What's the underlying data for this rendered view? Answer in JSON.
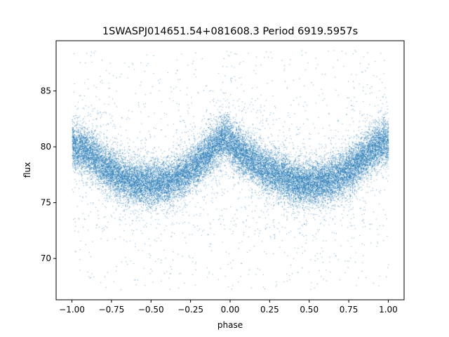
{
  "chart_data": {
    "type": "scatter",
    "title": "1SWASPJ014651.54+081608.3 Period 6919.5957s",
    "xlabel": "phase",
    "ylabel": "flux",
    "xlim": [
      -1.1,
      1.1
    ],
    "ylim": [
      66.3,
      89.5
    ],
    "xticks": [
      -1.0,
      -0.75,
      -0.5,
      -0.25,
      0.0,
      0.25,
      0.5,
      0.75,
      1.0
    ],
    "xtick_labels": [
      "−1.00",
      "−0.75",
      "−0.50",
      "−0.25",
      "0.00",
      "0.25",
      "0.50",
      "0.75",
      "1.00"
    ],
    "yticks": [
      70,
      75,
      80,
      85
    ],
    "ytick_labels": [
      "70",
      "75",
      "80",
      "85"
    ],
    "grid": false,
    "marker_color": "#1f77b4",
    "series": [
      {
        "name": "",
        "light_curve_trend": {
          "phase": [
            -1.0,
            -0.9,
            -0.8,
            -0.7,
            -0.6,
            -0.5,
            -0.4,
            -0.3,
            -0.2,
            -0.1,
            -0.03,
            0.0,
            0.05,
            0.1,
            0.2,
            0.3,
            0.4,
            0.5,
            0.6,
            0.7,
            0.8,
            0.9,
            0.97,
            1.0
          ],
          "flux": [
            80.2,
            79.5,
            78.3,
            77.4,
            76.9,
            76.7,
            76.8,
            77.5,
            78.6,
            80.0,
            81.0,
            80.4,
            79.7,
            79.2,
            78.2,
            77.5,
            76.9,
            76.7,
            76.9,
            77.5,
            78.5,
            79.8,
            80.6,
            80.2
          ]
        },
        "scatter_std": 1.0,
        "n_points_approx": 26000,
        "outlier_range": [
          67.2,
          88.7
        ]
      }
    ]
  }
}
